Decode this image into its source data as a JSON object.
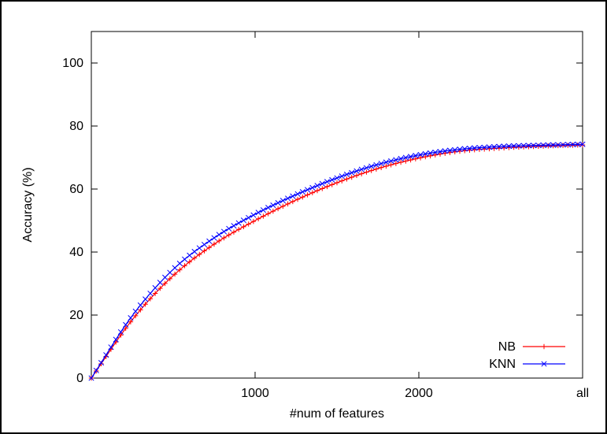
{
  "chart_data": {
    "type": "line",
    "title": "",
    "xlabel": "#num of features",
    "ylabel": "Accuracy (%)",
    "xlim": [
      0,
      3000
    ],
    "ylim": [
      0,
      110
    ],
    "xticks": [
      {
        "value": 1000,
        "label": "1000"
      },
      {
        "value": 2000,
        "label": "2000"
      },
      {
        "value": 3000,
        "label": "all"
      }
    ],
    "yticks": [
      {
        "value": 0,
        "label": "0"
      },
      {
        "value": 20,
        "label": "20"
      },
      {
        "value": 40,
        "label": "40"
      },
      {
        "value": 60,
        "label": "60"
      },
      {
        "value": 80,
        "label": "80"
      },
      {
        "value": 100,
        "label": "100"
      }
    ],
    "grid": false,
    "legend_position": "bottom-right",
    "series": [
      {
        "name": "NB",
        "color": "#ff0000",
        "marker": "plus",
        "x": [
          0,
          250,
          500,
          750,
          1000,
          1250,
          1500,
          1750,
          2000,
          2250,
          2500,
          2750,
          3000
        ],
        "y": [
          0,
          18.5,
          32.5,
          42.5,
          50.0,
          56.5,
          62.0,
          66.5,
          69.8,
          72.0,
          73.0,
          73.6,
          74.0
        ]
      },
      {
        "name": "KNN",
        "color": "#0000ff",
        "marker": "x",
        "x": [
          0,
          250,
          500,
          750,
          1000,
          1250,
          1500,
          1750,
          2000,
          2250,
          2500,
          2750,
          3000
        ],
        "y": [
          0,
          19.8,
          34.5,
          44.5,
          52.0,
          58.2,
          63.5,
          67.8,
          70.8,
          72.6,
          73.5,
          73.9,
          74.2
        ]
      }
    ]
  }
}
